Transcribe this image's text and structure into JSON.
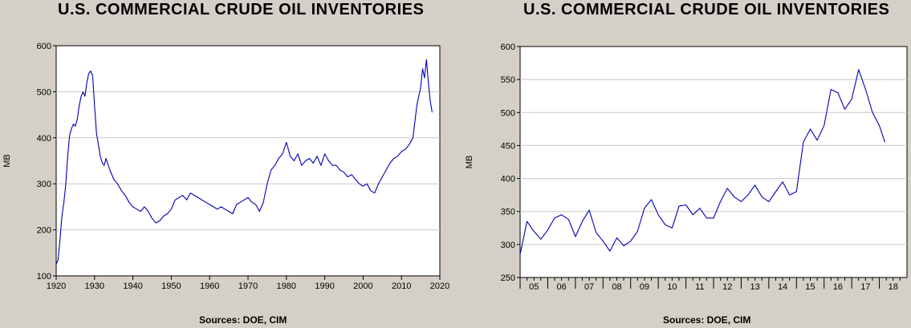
{
  "chart_data": [
    {
      "type": "line",
      "title": "U.S. COMMERCIAL CRUDE OIL INVENTORIES",
      "ylabel": "MB",
      "xlabel": "",
      "source": "Sources:  DOE, CIM",
      "xlim": [
        1920,
        2020
      ],
      "ylim": [
        100,
        600
      ],
      "xticks": [
        "1920",
        "1930",
        "1940",
        "1950",
        "1960",
        "1970",
        "1980",
        "1990",
        "2000",
        "2010",
        "2020"
      ],
      "yticks": [
        "100",
        "200",
        "300",
        "400",
        "500",
        "600"
      ],
      "grid": true,
      "line_color": "#0000b4",
      "series": [
        {
          "x": [
            1920,
            1920.5,
            1921,
            1921.5,
            1922,
            1922.5,
            1923,
            1923.5,
            1924,
            1924.5,
            1925,
            1925.5,
            1926,
            1926.5,
            1927,
            1927.5,
            1928,
            1928.5,
            1929,
            1929.5,
            1930,
            1930.5,
            1931,
            1931.5,
            1932,
            1932.5,
            1933,
            1934,
            1935,
            1936,
            1937,
            1938,
            1939,
            1940,
            1941,
            1942,
            1943,
            1944,
            1945,
            1946,
            1947,
            1948,
            1949,
            1950,
            1951,
            1952,
            1953,
            1954,
            1955,
            1956,
            1957,
            1958,
            1959,
            1960,
            1961,
            1962,
            1963,
            1964,
            1965,
            1966,
            1967,
            1968,
            1969,
            1970,
            1971,
            1972,
            1973,
            1974,
            1975,
            1976,
            1977,
            1978,
            1979,
            1980,
            1981,
            1982,
            1983,
            1984,
            1985,
            1986,
            1987,
            1988,
            1989,
            1990,
            1991,
            1992,
            1993,
            1994,
            1995,
            1996,
            1997,
            1998,
            1999,
            2000,
            2001,
            2002,
            2003,
            2004,
            2005,
            2006,
            2007,
            2008,
            2009,
            2010,
            2011,
            2012,
            2013,
            2014,
            2015,
            2015.5,
            2016,
            2016.5,
            2017,
            2017.5,
            2018
          ],
          "values": [
            125,
            135,
            180,
            230,
            260,
            300,
            360,
            405,
            420,
            430,
            425,
            440,
            470,
            490,
            500,
            490,
            520,
            540,
            545,
            535,
            470,
            410,
            385,
            360,
            345,
            340,
            355,
            330,
            310,
            300,
            285,
            275,
            260,
            250,
            245,
            240,
            250,
            240,
            225,
            215,
            220,
            230,
            235,
            245,
            265,
            270,
            275,
            265,
            280,
            275,
            270,
            265,
            260,
            255,
            250,
            245,
            250,
            245,
            240,
            235,
            255,
            260,
            265,
            270,
            260,
            255,
            240,
            260,
            300,
            330,
            340,
            355,
            365,
            390,
            360,
            350,
            365,
            340,
            350,
            355,
            345,
            360,
            340,
            365,
            350,
            340,
            340,
            330,
            325,
            315,
            320,
            310,
            300,
            295,
            300,
            285,
            280,
            300,
            315,
            330,
            345,
            355,
            360,
            370,
            375,
            385,
            400,
            470,
            510,
            550,
            530,
            570,
            520,
            480,
            455
          ]
        }
      ]
    },
    {
      "type": "line",
      "title": "U.S. COMMERCIAL CRUDE OIL INVENTORIES",
      "ylabel": "MB",
      "xlabel": "",
      "source": "Sources:  DOE, CIM",
      "xlim": [
        2005,
        2019
      ],
      "ylim": [
        250,
        600
      ],
      "xticks": [
        "05",
        "06",
        "07",
        "08",
        "09",
        "10",
        "11",
        "12",
        "13",
        "14",
        "15",
        "16",
        "17",
        "18"
      ],
      "yticks": [
        "250",
        "300",
        "350",
        "400",
        "450",
        "500",
        "550",
        "600"
      ],
      "grid": true,
      "line_color": "#0000b4",
      "series": [
        {
          "x": [
            2005,
            2005.25,
            2005.5,
            2005.75,
            2006,
            2006.25,
            2006.5,
            2006.75,
            2007,
            2007.25,
            2007.5,
            2007.75,
            2008,
            2008.25,
            2008.5,
            2008.75,
            2009,
            2009.25,
            2009.5,
            2009.75,
            2010,
            2010.25,
            2010.5,
            2010.75,
            2011,
            2011.25,
            2011.5,
            2011.75,
            2012,
            2012.25,
            2012.5,
            2012.75,
            2013,
            2013.25,
            2013.5,
            2013.75,
            2014,
            2014.25,
            2014.5,
            2014.75,
            2015,
            2015.25,
            2015.5,
            2015.75,
            2016,
            2016.25,
            2016.5,
            2016.75,
            2017,
            2017.25,
            2017.5,
            2017.75,
            2018,
            2018.2
          ],
          "values": [
            285,
            335,
            320,
            308,
            322,
            340,
            345,
            338,
            312,
            335,
            352,
            318,
            305,
            290,
            310,
            298,
            305,
            320,
            355,
            368,
            345,
            330,
            325,
            358,
            360,
            345,
            355,
            340,
            340,
            365,
            385,
            372,
            365,
            375,
            390,
            372,
            365,
            380,
            395,
            375,
            380,
            455,
            475,
            458,
            480,
            535,
            530,
            505,
            520,
            565,
            535,
            500,
            480,
            455
          ]
        }
      ]
    }
  ]
}
